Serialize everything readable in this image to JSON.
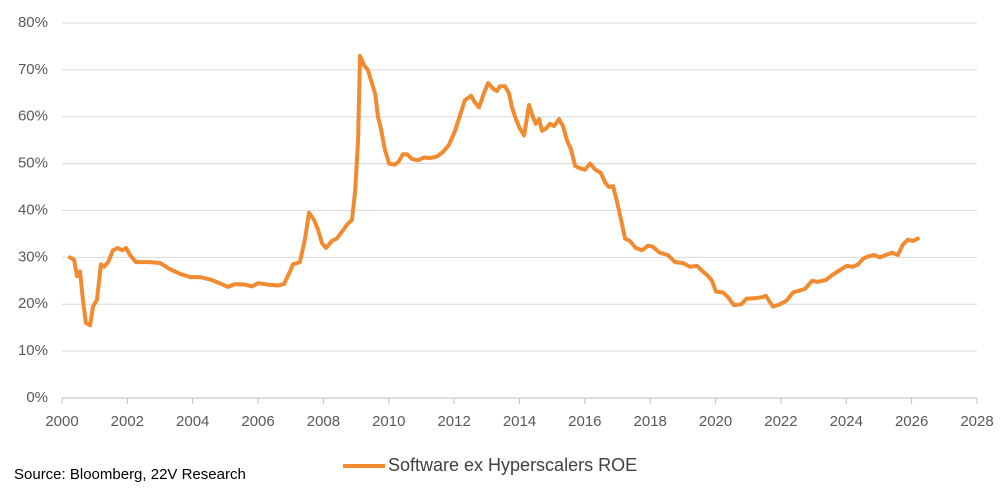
{
  "chart_data": {
    "type": "line",
    "source": "Source: Bloomberg, 22V Research",
    "x": [
      2000.24,
      2000.37,
      2000.46,
      2000.55,
      2000.64,
      2000.73,
      2000.86,
      2000.95,
      2001.07,
      2001.19,
      2001.29,
      2001.41,
      2001.56,
      2001.71,
      2001.84,
      2001.96,
      2002.08,
      2002.26,
      2002.69,
      2003.0,
      2003.3,
      2003.61,
      2003.92,
      2004.22,
      2004.53,
      2004.83,
      2005.08,
      2005.29,
      2005.6,
      2005.81,
      2006.0,
      2006.3,
      2006.61,
      2006.79,
      2006.98,
      2007.07,
      2007.28,
      2007.44,
      2007.56,
      2007.71,
      2007.83,
      2007.96,
      2008.08,
      2008.26,
      2008.41,
      2008.57,
      2008.72,
      2008.87,
      2008.97,
      2009.06,
      2009.12,
      2009.24,
      2009.36,
      2009.49,
      2009.58,
      2009.67,
      2009.76,
      2009.88,
      2010.01,
      2010.19,
      2010.31,
      2010.43,
      2010.56,
      2010.71,
      2010.89,
      2011.08,
      2011.26,
      2011.47,
      2011.66,
      2011.84,
      2012.03,
      2012.21,
      2012.33,
      2012.52,
      2012.64,
      2012.76,
      2012.91,
      2013.04,
      2013.19,
      2013.31,
      2013.4,
      2013.56,
      2013.68,
      2013.77,
      2013.89,
      2014.01,
      2014.14,
      2014.29,
      2014.41,
      2014.5,
      2014.6,
      2014.69,
      2014.81,
      2014.93,
      2015.06,
      2015.21,
      2015.33,
      2015.45,
      2015.58,
      2015.7,
      2015.85,
      2016.0,
      2016.16,
      2016.31,
      2016.49,
      2016.62,
      2016.74,
      2016.86,
      2016.98,
      2017.11,
      2017.23,
      2017.38,
      2017.56,
      2017.75,
      2017.93,
      2018.08,
      2018.29,
      2018.54,
      2018.76,
      2019.0,
      2019.22,
      2019.43,
      2019.61,
      2019.77,
      2019.89,
      2020.01,
      2020.23,
      2020.38,
      2020.56,
      2020.78,
      2020.96,
      2021.21,
      2021.42,
      2021.54,
      2021.66,
      2021.76,
      2021.97,
      2022.18,
      2022.37,
      2022.52,
      2022.74,
      2022.95,
      2023.13,
      2023.38,
      2023.56,
      2023.81,
      2024.02,
      2024.2,
      2024.36,
      2024.51,
      2024.66,
      2024.85,
      2025.03,
      2025.21,
      2025.4,
      2025.58,
      2025.73,
      2025.89,
      2026.04,
      2026.19
    ],
    "series": [
      {
        "name": "Software ex Hyperscalers ROE",
        "color": "#f28a30",
        "values": [
          30,
          29.5,
          26,
          27,
          21,
          16,
          15.5,
          19.5,
          21,
          28.5,
          28,
          29,
          31.5,
          32,
          31.5,
          32,
          30.5,
          29,
          29,
          28.8,
          27.5,
          26.5,
          25.8,
          25.8,
          25.3,
          24.5,
          23.7,
          24.3,
          24.2,
          23.8,
          24.5,
          24.2,
          24,
          24.3,
          27,
          28.5,
          29,
          34,
          39.5,
          38,
          36,
          33,
          32,
          33.5,
          34,
          35.5,
          37,
          38,
          44,
          55,
          73,
          71,
          70,
          67,
          65,
          60,
          57.5,
          53,
          50,
          49.8,
          50.5,
          52,
          52,
          51,
          50.7,
          51.3,
          51.2,
          51.5,
          52.5,
          54,
          57,
          61,
          63.5,
          64.5,
          63,
          62,
          65,
          67.2,
          66,
          65.5,
          66.5,
          66.5,
          65,
          62,
          59.5,
          57.5,
          56,
          62.5,
          60,
          58.5,
          59.5,
          57,
          57.5,
          58.5,
          58,
          59.5,
          58,
          55,
          53,
          49.5,
          49,
          48.7,
          50,
          48.8,
          48,
          46,
          45,
          45.2,
          42,
          38,
          34,
          33.5,
          32,
          31.5,
          32.5,
          32.3,
          31,
          30.5,
          29,
          28.8,
          28,
          28.2,
          27,
          26,
          25,
          22.7,
          22.5,
          21.5,
          19.8,
          20,
          21.2,
          21.3,
          21.5,
          21.8,
          20.5,
          19.5,
          20,
          20.8,
          22.5,
          22.8,
          23.3,
          25,
          24.8,
          25.2,
          26.2,
          27.3,
          28.2,
          28,
          28.5,
          29.7,
          30.2,
          30.5,
          30,
          30.5,
          31,
          30.5,
          32.7,
          33.8,
          33.5,
          34
        ]
      }
    ],
    "xlim": [
      2000,
      2028
    ],
    "xticks": [
      2000,
      2002,
      2004,
      2006,
      2008,
      2010,
      2012,
      2014,
      2016,
      2018,
      2020,
      2022,
      2024,
      2026,
      2028
    ],
    "ylim": [
      0,
      80
    ],
    "yticks": [
      {
        "value": 0,
        "label": "0%"
      },
      {
        "value": 10,
        "label": "10%"
      },
      {
        "value": 20,
        "label": "20%"
      },
      {
        "value": 30,
        "label": "30%"
      },
      {
        "value": 40,
        "label": "40%"
      },
      {
        "value": 50,
        "label": "50%"
      },
      {
        "value": 60,
        "label": "60%"
      },
      {
        "value": 70,
        "label": "70%"
      },
      {
        "value": 80,
        "label": "80%"
      }
    ],
    "grid": true
  }
}
